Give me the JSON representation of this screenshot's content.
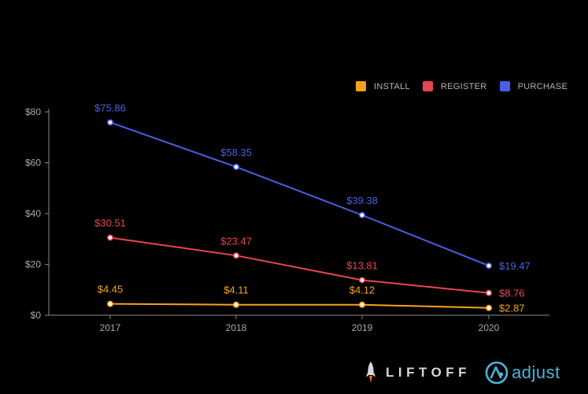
{
  "chart_data": {
    "type": "line",
    "title": "",
    "xlabel": "",
    "ylabel": "",
    "categories": [
      "2017",
      "2018",
      "2019",
      "2020"
    ],
    "ylim": [
      0,
      80
    ],
    "yticks": [
      0,
      20,
      40,
      60,
      80
    ],
    "ytick_labels": [
      "$0",
      "$20",
      "$40",
      "$60",
      "$80"
    ],
    "grid": false,
    "legend_position": "top-right",
    "series": [
      {
        "name": "INSTALL",
        "color": "#f7a21b",
        "values": [
          4.45,
          4.11,
          4.12,
          2.87
        ],
        "labels": [
          "$4.45",
          "$4.11",
          "$4.12",
          "$2.87"
        ]
      },
      {
        "name": "REGISTER",
        "color": "#e8454e",
        "values": [
          30.51,
          23.47,
          13.81,
          8.76
        ],
        "labels": [
          "$30.51",
          "$23.47",
          "$13.81",
          "$8.76"
        ]
      },
      {
        "name": "PURCHASE",
        "color": "#4a5fe6",
        "values": [
          75.86,
          58.35,
          39.38,
          19.47
        ],
        "labels": [
          "$75.86",
          "$58.35",
          "$39.38",
          "$19.47"
        ]
      }
    ]
  },
  "branding": {
    "liftoff": "LIFTOFF",
    "adjust": "adjust",
    "liftoff_color": "#d6d6d6",
    "adjust_color": "#4cb4d8"
  }
}
